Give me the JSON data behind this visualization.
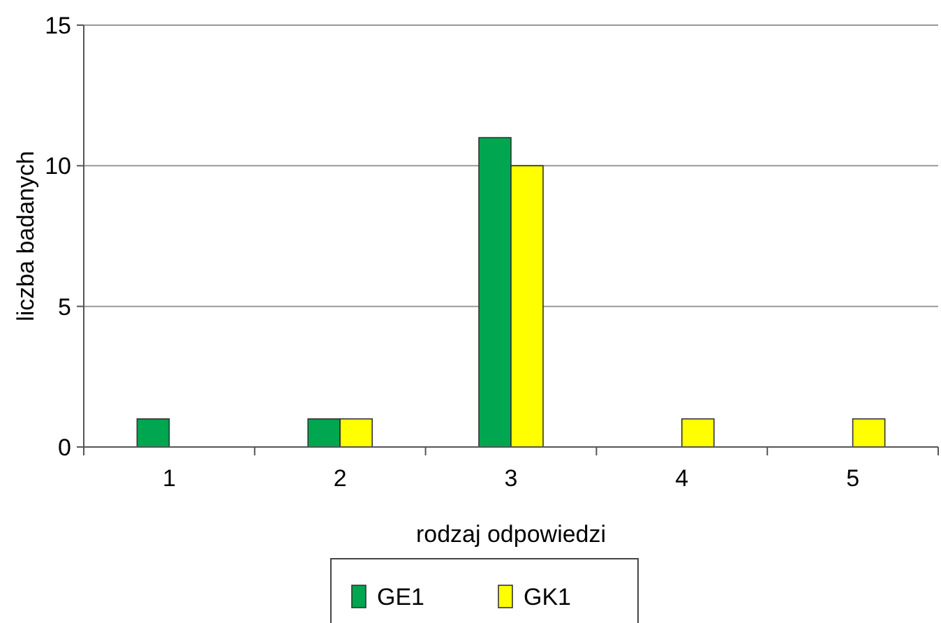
{
  "chart_data": {
    "type": "bar",
    "xlabel": "rodzaj odpowiedzi",
    "ylabel": "liczba badanych",
    "categories": [
      "1",
      "2",
      "3",
      "4",
      "5"
    ],
    "series": [
      {
        "name": "GE1",
        "color": "#00a650",
        "values": [
          1,
          1,
          11,
          0,
          0
        ]
      },
      {
        "name": "GK1",
        "color": "#ffff00",
        "values": [
          0,
          1,
          10,
          1,
          1
        ]
      }
    ],
    "ylim": [
      0,
      15
    ],
    "yticks": [
      0,
      5,
      10,
      15
    ],
    "grid": "y",
    "legend": "bottom"
  }
}
